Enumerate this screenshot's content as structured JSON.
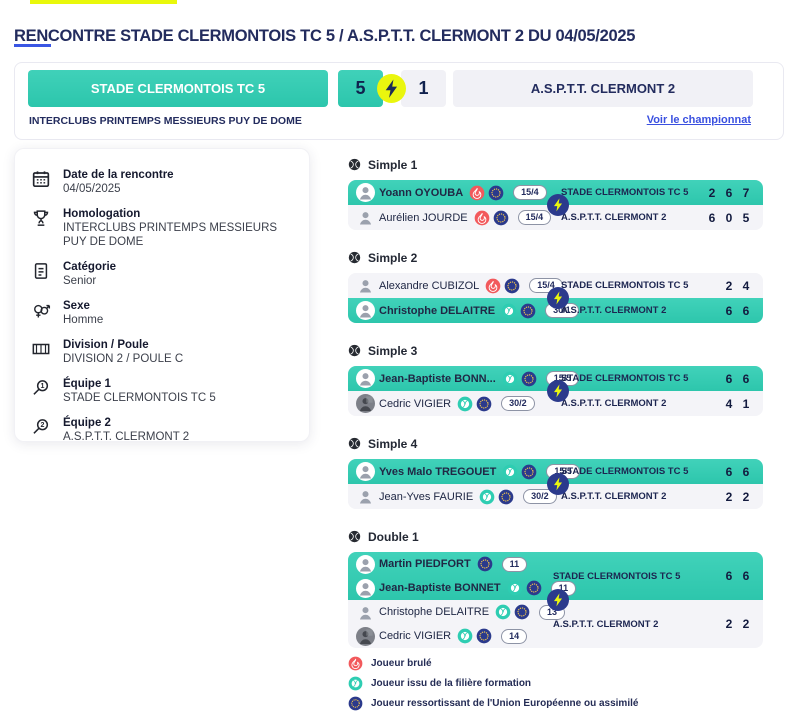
{
  "title": "RENCONTRE STADE CLERMONTOIS TC 5 / A.S.P.T.T. CLERMONT 2 DU 04/05/2025",
  "colors": {
    "teal": "#2ecdb2",
    "navy": "#232c5e",
    "red": "#f2595c",
    "eu_blue": "#2b3a8c",
    "bolt_yellow": "#eaf60e",
    "link_blue": "#3a50e0",
    "row_gray": "#f4f4f8"
  },
  "scoreboard": {
    "home_team": "STADE CLERMONTOIS TC 5",
    "home_score": "5",
    "away_score": "1",
    "away_team": "A.S.P.T.T. CLERMONT 2",
    "competition": "INTERCLUBS PRINTEMPS MESSIEURS PUY DE DOME",
    "link_label": "Voir le championnat"
  },
  "details": {
    "items": [
      {
        "icon": "calendar",
        "label": "Date de la rencontre",
        "value": "04/05/2025"
      },
      {
        "icon": "trophy",
        "label": "Homologation",
        "value": "INTERCLUBS PRINTEMPS MESSIEURS PUY DE DOME"
      },
      {
        "icon": "category",
        "label": "Catégorie",
        "value": "Senior"
      },
      {
        "icon": "sexe",
        "label": "Sexe",
        "value": "Homme"
      },
      {
        "icon": "court",
        "label": "Division / Poule",
        "value": "DIVISION 2 / POULE C"
      },
      {
        "icon": "search1",
        "label": "Équipe 1",
        "value": "STADE CLERMONTOIS TC 5"
      },
      {
        "icon": "search2",
        "label": "Équipe 2",
        "value": "A.S.P.T.T. CLERMONT 2"
      }
    ]
  },
  "matches": [
    {
      "label": "Simple 1",
      "rows": [
        {
          "name": "Yoann OYOUBA",
          "avatar": "avatar",
          "icons": [
            "brule",
            "eu"
          ],
          "rank": "15/4",
          "team": "STADE CLERMONTOIS TC 5",
          "sets": [
            "2",
            "6",
            "7"
          ],
          "winner": true
        },
        {
          "name": "Aurélien JOURDE",
          "avatar": "avatar",
          "icons": [
            "brule",
            "eu"
          ],
          "rank": "15/4",
          "team": "A.S.P.T.T. CLERMONT 2",
          "sets": [
            "6",
            "0",
            "5"
          ],
          "winner": false
        }
      ]
    },
    {
      "label": "Simple 2",
      "rows": [
        {
          "name": "Alexandre CUBIZOL",
          "avatar": "avatar",
          "icons": [
            "brule",
            "eu"
          ],
          "rank": "15/4",
          "team": "STADE CLERMONTOIS TC 5",
          "sets": [
            "2",
            "4"
          ],
          "winner": false
        },
        {
          "name": "Christophe DELAITRE",
          "avatar": "avatar",
          "icons": [
            "filiere",
            "eu"
          ],
          "rank": "30/1",
          "team": "A.S.P.T.T. CLERMONT 2",
          "sets": [
            "6",
            "6"
          ],
          "winner": true
        }
      ]
    },
    {
      "label": "Simple 3",
      "rows": [
        {
          "name": "Jean-Baptiste BONN...",
          "avatar": "avatar",
          "icons": [
            "filiere",
            "eu"
          ],
          "rank": "15/5",
          "team": "STADE CLERMONTOIS TC 5",
          "sets": [
            "6",
            "6"
          ],
          "winner": true
        },
        {
          "name": "Cedric VIGIER",
          "avatar": "avatar-photo",
          "icons": [
            "filiere",
            "eu"
          ],
          "rank": "30/2",
          "team": "A.S.P.T.T. CLERMONT 2",
          "sets": [
            "4",
            "1"
          ],
          "winner": false
        }
      ]
    },
    {
      "label": "Simple 4",
      "rows": [
        {
          "name": "Yves Malo TREGOUET",
          "avatar": "avatar",
          "icons": [
            "filiere",
            "eu"
          ],
          "rank": "15/5",
          "team": "STADE CLERMONTOIS TC 5",
          "sets": [
            "6",
            "6"
          ],
          "winner": true
        },
        {
          "name": "Jean-Yves FAURIE",
          "avatar": "avatar",
          "icons": [
            "filiere",
            "eu"
          ],
          "rank": "30/2",
          "team": "A.S.P.T.T. CLERMONT 2",
          "sets": [
            "2",
            "2"
          ],
          "winner": false
        }
      ]
    },
    {
      "label": "Double 1",
      "teams": [
        {
          "players": [
            {
              "name": "Martin PIEDFORT",
              "avatar": "avatar",
              "icons": [
                "eu"
              ],
              "rank": "11"
            },
            {
              "name": "Jean-Baptiste BONNET",
              "avatar": "avatar",
              "icons": [
                "filiere",
                "eu"
              ],
              "rank": "11"
            }
          ],
          "team": "STADE CLERMONTOIS TC 5",
          "sets": [
            "6",
            "6"
          ],
          "winner": true
        },
        {
          "players": [
            {
              "name": "Christophe DELAITRE",
              "avatar": "avatar",
              "icons": [
                "filiere",
                "eu"
              ],
              "rank": "13"
            },
            {
              "name": "Cedric VIGIER",
              "avatar": "avatar-photo",
              "icons": [
                "filiere",
                "eu"
              ],
              "rank": "14"
            }
          ],
          "team": "A.S.P.T.T. CLERMONT 2",
          "sets": [
            "2",
            "2"
          ],
          "winner": false
        }
      ]
    }
  ],
  "legend": [
    {
      "icon": "brule",
      "label": "Joueur brulé"
    },
    {
      "icon": "filiere",
      "label": "Joueur issu de la filière formation"
    },
    {
      "icon": "eu",
      "label": "Joueur ressortissant de l'Union Européenne ou assimilé"
    }
  ]
}
